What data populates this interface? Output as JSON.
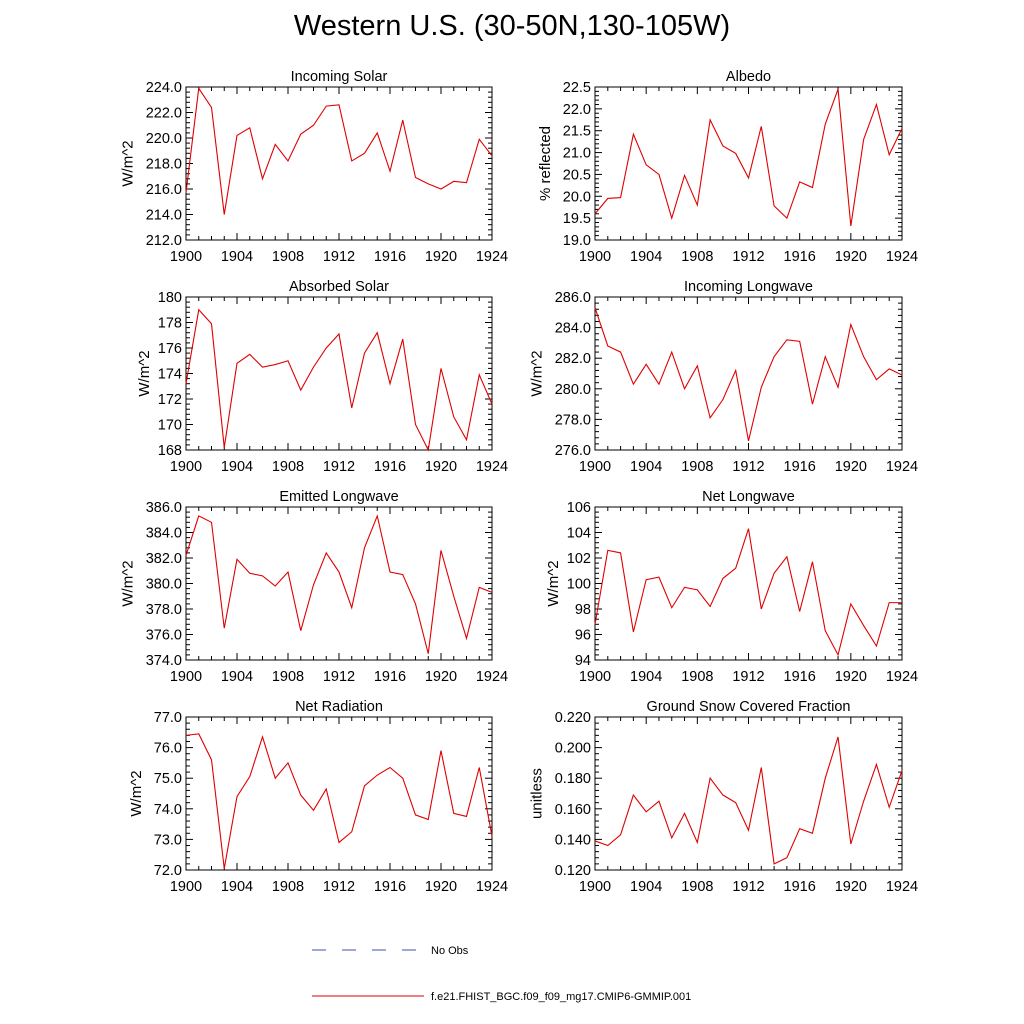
{
  "page_title": "Western U.S. (30-50N,130-105W)",
  "legend": [
    {
      "label": "No Obs",
      "color": "#3b4fb0",
      "style": "dashed"
    },
    {
      "label": "f.e21.FHIST_BGC.f09_f09_mg17.CMIP6-GMMIP.001",
      "color": "#e00000",
      "style": "solid"
    }
  ],
  "chart_data": [
    {
      "type": "line",
      "title": "Incoming Solar",
      "ylabel": "W/m^2",
      "ylim": [
        212,
        224
      ],
      "yticks": [
        212,
        214,
        216,
        218,
        220,
        222,
        224
      ],
      "ytick_labels": [
        "212.0",
        "214.0",
        "216.0",
        "218.0",
        "220.0",
        "222.0",
        "224.0"
      ],
      "xlim": [
        1900,
        1924
      ],
      "xticks": [
        1900,
        1904,
        1908,
        1912,
        1916,
        1920,
        1924
      ],
      "xtick_labels": [
        "1900",
        "1904",
        "1908",
        "1912",
        "1916",
        "1920",
        "1924"
      ],
      "x": [
        1900,
        1901,
        1902,
        1903,
        1904,
        1905,
        1906,
        1907,
        1908,
        1909,
        1910,
        1911,
        1912,
        1913,
        1914,
        1915,
        1916,
        1917,
        1918,
        1919,
        1920,
        1921,
        1922,
        1923,
        1924
      ],
      "series": [
        {
          "name": "f.e21.FHIST_BGC.f09_f09_mg17.CMIP6-GMMIP.001",
          "color": "#e00000",
          "values": [
            215.7,
            223.9,
            222.4,
            214.0,
            220.2,
            220.8,
            216.8,
            219.5,
            218.2,
            220.3,
            221.0,
            222.5,
            222.6,
            218.2,
            218.8,
            220.4,
            217.4,
            221.4,
            216.9,
            216.4,
            216.0,
            216.6,
            216.5,
            219.9,
            218.6
          ]
        }
      ]
    },
    {
      "type": "line",
      "title": "Albedo",
      "ylabel": "% reflected",
      "ylim": [
        19.0,
        22.5
      ],
      "yticks": [
        19.0,
        19.5,
        20.0,
        20.5,
        21.0,
        21.5,
        22.0,
        22.5
      ],
      "ytick_labels": [
        "19.0",
        "19.5",
        "20.0",
        "20.5",
        "21.0",
        "21.5",
        "22.0",
        "22.5"
      ],
      "xlim": [
        1900,
        1924
      ],
      "xticks": [
        1900,
        1904,
        1908,
        1912,
        1916,
        1920,
        1924
      ],
      "xtick_labels": [
        "1900",
        "1904",
        "1908",
        "1912",
        "1916",
        "1920",
        "1924"
      ],
      "x": [
        1900,
        1901,
        1902,
        1903,
        1904,
        1905,
        1906,
        1907,
        1908,
        1909,
        1910,
        1911,
        1912,
        1913,
        1914,
        1915,
        1916,
        1917,
        1918,
        1919,
        1920,
        1921,
        1922,
        1923,
        1924
      ],
      "series": [
        {
          "name": "f.e21.FHIST_BGC.f09_f09_mg17.CMIP6-GMMIP.001",
          "color": "#e00000",
          "values": [
            19.6,
            19.95,
            19.97,
            21.42,
            20.72,
            20.5,
            19.5,
            20.48,
            19.8,
            21.75,
            21.15,
            20.98,
            20.42,
            21.6,
            19.78,
            19.5,
            20.33,
            20.2,
            21.65,
            22.45,
            19.32,
            21.3,
            22.1,
            20.95,
            21.55
          ]
        }
      ]
    },
    {
      "type": "line",
      "title": "Absorbed Solar",
      "ylabel": "W/m^2",
      "ylim": [
        168,
        180
      ],
      "yticks": [
        168,
        170,
        172,
        174,
        176,
        178,
        180
      ],
      "ytick_labels": [
        "168",
        "170",
        "172",
        "174",
        "176",
        "178",
        "180"
      ],
      "xlim": [
        1900,
        1924
      ],
      "xticks": [
        1900,
        1904,
        1908,
        1912,
        1916,
        1920,
        1924
      ],
      "xtick_labels": [
        "1900",
        "1904",
        "1908",
        "1912",
        "1916",
        "1920",
        "1924"
      ],
      "x": [
        1900,
        1901,
        1902,
        1903,
        1904,
        1905,
        1906,
        1907,
        1908,
        1909,
        1910,
        1911,
        1912,
        1913,
        1914,
        1915,
        1916,
        1917,
        1918,
        1919,
        1920,
        1921,
        1922,
        1923,
        1924
      ],
      "series": [
        {
          "name": "f.e21.FHIST_BGC.f09_f09_mg17.CMIP6-GMMIP.001",
          "color": "#e00000",
          "values": [
            173.2,
            179.0,
            177.9,
            168.2,
            174.8,
            175.5,
            174.5,
            174.7,
            175.0,
            172.7,
            174.5,
            176.0,
            177.1,
            171.3,
            175.6,
            177.2,
            173.2,
            176.7,
            170.0,
            168.0,
            174.4,
            170.6,
            168.8,
            173.9,
            171.6
          ]
        }
      ]
    },
    {
      "type": "line",
      "title": "Incoming Longwave",
      "ylabel": "W/m^2",
      "ylim": [
        276,
        286
      ],
      "yticks": [
        276,
        278,
        280,
        282,
        284,
        286
      ],
      "ytick_labels": [
        "276.0",
        "278.0",
        "280.0",
        "282.0",
        "284.0",
        "286.0"
      ],
      "xlim": [
        1900,
        1924
      ],
      "xticks": [
        1900,
        1904,
        1908,
        1912,
        1916,
        1920,
        1924
      ],
      "xtick_labels": [
        "1900",
        "1904",
        "1908",
        "1912",
        "1916",
        "1920",
        "1924"
      ],
      "x": [
        1900,
        1901,
        1902,
        1903,
        1904,
        1905,
        1906,
        1907,
        1908,
        1909,
        1910,
        1911,
        1912,
        1913,
        1914,
        1915,
        1916,
        1917,
        1918,
        1919,
        1920,
        1921,
        1922,
        1923,
        1924
      ],
      "series": [
        {
          "name": "f.e21.FHIST_BGC.f09_f09_mg17.CMIP6-GMMIP.001",
          "color": "#e00000",
          "values": [
            285.3,
            282.8,
            282.4,
            280.3,
            281.6,
            280.3,
            282.4,
            280.0,
            281.5,
            278.1,
            279.3,
            281.2,
            276.6,
            280.1,
            282.1,
            283.2,
            283.1,
            279.0,
            282.1,
            280.1,
            284.2,
            282.1,
            280.6,
            281.3,
            280.9
          ]
        }
      ]
    },
    {
      "type": "line",
      "title": "Emitted Longwave",
      "ylabel": "W/m^2",
      "ylim": [
        374,
        386
      ],
      "yticks": [
        374,
        376,
        378,
        380,
        382,
        384,
        386
      ],
      "ytick_labels": [
        "374.0",
        "376.0",
        "378.0",
        "380.0",
        "382.0",
        "384.0",
        "386.0"
      ],
      "xlim": [
        1900,
        1924
      ],
      "xticks": [
        1900,
        1904,
        1908,
        1912,
        1916,
        1920,
        1924
      ],
      "xtick_labels": [
        "1900",
        "1904",
        "1908",
        "1912",
        "1916",
        "1920",
        "1924"
      ],
      "x": [
        1900,
        1901,
        1902,
        1903,
        1904,
        1905,
        1906,
        1907,
        1908,
        1909,
        1910,
        1911,
        1912,
        1913,
        1914,
        1915,
        1916,
        1917,
        1918,
        1919,
        1920,
        1921,
        1922,
        1923,
        1924
      ],
      "series": [
        {
          "name": "f.e21.FHIST_BGC.f09_f09_mg17.CMIP6-GMMIP.001",
          "color": "#e00000",
          "values": [
            382.2,
            385.3,
            384.8,
            376.5,
            381.9,
            380.8,
            380.6,
            379.8,
            380.9,
            376.3,
            379.9,
            382.4,
            380.9,
            378.1,
            382.8,
            385.3,
            380.9,
            380.7,
            378.4,
            374.5,
            382.6,
            379.0,
            375.7,
            379.7,
            379.3
          ]
        }
      ]
    },
    {
      "type": "line",
      "title": "Net Longwave",
      "ylabel": "W/m^2",
      "ylim": [
        94,
        106
      ],
      "yticks": [
        94,
        96,
        98,
        100,
        102,
        104,
        106
      ],
      "ytick_labels": [
        "94",
        "96",
        "98",
        "100",
        "102",
        "104",
        "106"
      ],
      "xlim": [
        1900,
        1924
      ],
      "xticks": [
        1900,
        1904,
        1908,
        1912,
        1916,
        1920,
        1924
      ],
      "xtick_labels": [
        "1900",
        "1904",
        "1908",
        "1912",
        "1916",
        "1920",
        "1924"
      ],
      "x": [
        1900,
        1901,
        1902,
        1903,
        1904,
        1905,
        1906,
        1907,
        1908,
        1909,
        1910,
        1911,
        1912,
        1913,
        1914,
        1915,
        1916,
        1917,
        1918,
        1919,
        1920,
        1921,
        1922,
        1923,
        1924
      ],
      "series": [
        {
          "name": "f.e21.FHIST_BGC.f09_f09_mg17.CMIP6-GMMIP.001",
          "color": "#e00000",
          "values": [
            96.8,
            102.6,
            102.4,
            96.2,
            100.3,
            100.5,
            98.1,
            99.7,
            99.5,
            98.2,
            100.4,
            101.2,
            104.3,
            98.0,
            100.8,
            102.1,
            97.8,
            101.7,
            96.3,
            94.4,
            98.4,
            96.7,
            95.1,
            98.5,
            98.5
          ]
        }
      ]
    },
    {
      "type": "line",
      "title": "Net Radiation",
      "ylabel": "W/m^2",
      "ylim": [
        72,
        77
      ],
      "yticks": [
        72,
        73,
        74,
        75,
        76,
        77
      ],
      "ytick_labels": [
        "72.0",
        "73.0",
        "74.0",
        "75.0",
        "76.0",
        "77.0"
      ],
      "xlim": [
        1900,
        1924
      ],
      "xticks": [
        1900,
        1904,
        1908,
        1912,
        1916,
        1920,
        1924
      ],
      "xtick_labels": [
        "1900",
        "1904",
        "1908",
        "1912",
        "1916",
        "1920",
        "1924"
      ],
      "x": [
        1900,
        1901,
        1902,
        1903,
        1904,
        1905,
        1906,
        1907,
        1908,
        1909,
        1910,
        1911,
        1912,
        1913,
        1914,
        1915,
        1916,
        1917,
        1918,
        1919,
        1920,
        1921,
        1922,
        1923,
        1924
      ],
      "series": [
        {
          "name": "f.e21.FHIST_BGC.f09_f09_mg17.CMIP6-GMMIP.001",
          "color": "#e00000",
          "values": [
            76.4,
            76.45,
            75.6,
            72.05,
            74.4,
            75.05,
            76.35,
            75.0,
            75.5,
            74.45,
            73.95,
            74.65,
            72.9,
            73.25,
            74.75,
            75.1,
            75.35,
            75.0,
            73.8,
            73.65,
            75.9,
            73.85,
            73.75,
            75.35,
            73.1
          ]
        }
      ]
    },
    {
      "type": "line",
      "title": "Ground Snow Covered Fraction",
      "ylabel": "unitless",
      "ylim": [
        0.12,
        0.22
      ],
      "yticks": [
        0.12,
        0.14,
        0.16,
        0.18,
        0.2,
        0.22
      ],
      "ytick_labels": [
        "0.120",
        "0.140",
        "0.160",
        "0.180",
        "0.200",
        "0.220"
      ],
      "xlim": [
        1900,
        1924
      ],
      "xticks": [
        1900,
        1904,
        1908,
        1912,
        1916,
        1920,
        1924
      ],
      "xtick_labels": [
        "1900",
        "1904",
        "1908",
        "1912",
        "1916",
        "1920",
        "1924"
      ],
      "x": [
        1900,
        1901,
        1902,
        1903,
        1904,
        1905,
        1906,
        1907,
        1908,
        1909,
        1910,
        1911,
        1912,
        1913,
        1914,
        1915,
        1916,
        1917,
        1918,
        1919,
        1920,
        1921,
        1922,
        1923,
        1924
      ],
      "series": [
        {
          "name": "f.e21.FHIST_BGC.f09_f09_mg17.CMIP6-GMMIP.001",
          "color": "#e00000",
          "values": [
            0.139,
            0.136,
            0.143,
            0.169,
            0.158,
            0.165,
            0.141,
            0.157,
            0.138,
            0.18,
            0.169,
            0.164,
            0.146,
            0.187,
            0.124,
            0.128,
            0.147,
            0.144,
            0.18,
            0.207,
            0.137,
            0.165,
            0.189,
            0.161,
            0.185
          ]
        }
      ]
    }
  ]
}
